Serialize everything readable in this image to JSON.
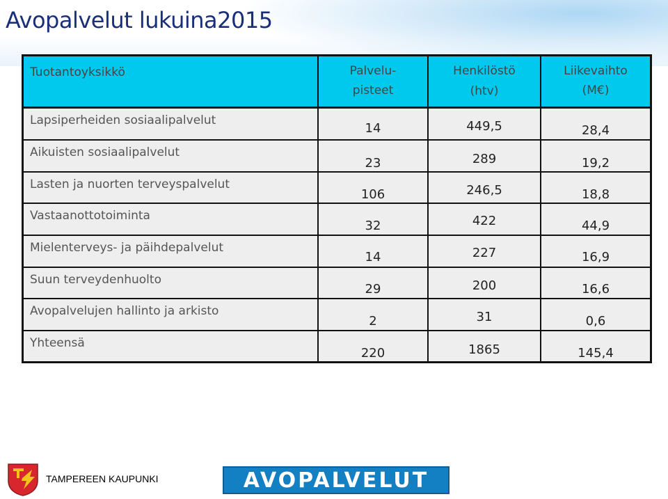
{
  "title": "Avopalvelut lukuina2015",
  "table": {
    "headers": {
      "unit": "Tuotantoyksikkö",
      "points_line1": "Palvelu-",
      "points_line2": "pisteet",
      "staff_line1": "Henkilöstö",
      "staff_line2": "(htv)",
      "revenue_line1": "Liikevaihto",
      "revenue_line2": "(M€)"
    },
    "rows": [
      {
        "unit": "Lapsiperheiden sosiaalipalvelut",
        "points": "14",
        "staff": "449,5",
        "revenue": "28,4"
      },
      {
        "unit": "Aikuisten sosiaalipalvelut",
        "points": "23",
        "staff": "289",
        "revenue": "19,2"
      },
      {
        "unit": "Lasten ja nuorten terveyspalvelut",
        "points": "106",
        "staff": "246,5",
        "revenue": "18,8"
      },
      {
        "unit": "Vastaanottotoiminta",
        "points": "32",
        "staff": "422",
        "revenue": "44,9"
      },
      {
        "unit": "Mielenterveys- ja päihdepalvelut",
        "points": "14",
        "staff": "227",
        "revenue": "16,9"
      },
      {
        "unit": "Suun terveydenhuolto",
        "points": "29",
        "staff": "200",
        "revenue": "16,6"
      },
      {
        "unit": "Avopalvelujen hallinto ja arkisto",
        "points": "2",
        "staff": "31",
        "revenue": "0,6"
      },
      {
        "unit": "Yhteensä",
        "points": "220",
        "staff": "1865",
        "revenue": "145,4"
      }
    ]
  },
  "footer": {
    "city": "TAMPEREEN KAUPUNKI",
    "brand": "AVOPALVELUT"
  },
  "colors": {
    "header_bg": "#00c9ee",
    "row_bg": "#eeeeee",
    "title": "#1a2f7a",
    "brand_bg": "#1480c4"
  }
}
